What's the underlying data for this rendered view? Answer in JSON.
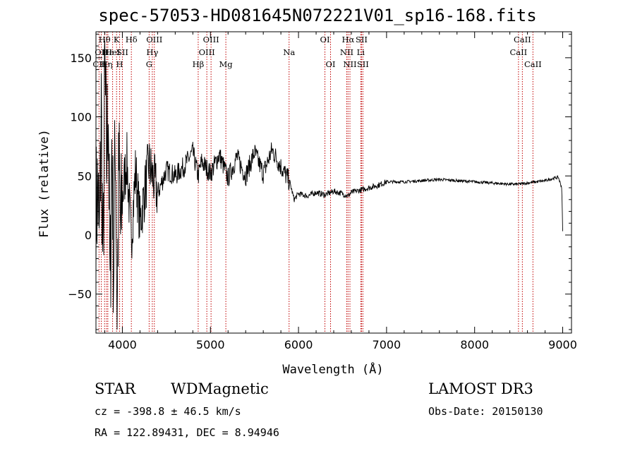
{
  "chart_data": {
    "type": "line",
    "title": "spec-57053-HD081645N072221V01_sp16-168.fits",
    "xlabel": "Wavelength (Å)",
    "ylabel": "Flux (relative)",
    "xlim": [
      3700,
      9100
    ],
    "ylim": [
      -83,
      172
    ],
    "xticks": [
      4000,
      5000,
      6000,
      7000,
      8000,
      9000
    ],
    "yticks": [
      -50,
      0,
      50,
      100,
      150
    ],
    "series": [
      {
        "name": "spectrum",
        "x": [
          3700,
          3720,
          3740,
          3760,
          3780,
          3800,
          3820,
          3840,
          3860,
          3880,
          3900,
          3920,
          3940,
          3960,
          3980,
          4000,
          4050,
          4100,
          4150,
          4200,
          4300,
          4400,
          4500,
          4600,
          4700,
          4800,
          4860,
          4900,
          5000,
          5100,
          5200,
          5300,
          5400,
          5500,
          5600,
          5700,
          5800,
          5900,
          5950,
          6000,
          6100,
          6200,
          6300,
          6400,
          6500,
          6560,
          6600,
          6700,
          6800,
          6900,
          7000,
          7200,
          7400,
          7600,
          7800,
          8000,
          8200,
          8400,
          8500,
          8600,
          8700,
          8800,
          8900,
          8950,
          8990,
          9000
        ],
        "y": [
          15,
          40,
          -10,
          110,
          -40,
          140,
          60,
          120,
          -60,
          80,
          -30,
          90,
          -70,
          60,
          0,
          30,
          65,
          -5,
          55,
          10,
          60,
          35,
          55,
          50,
          58,
          70,
          50,
          62,
          52,
          68,
          48,
          66,
          50,
          70,
          52,
          72,
          58,
          45,
          30,
          35,
          33,
          36,
          34,
          37,
          35,
          33,
          36,
          38,
          40,
          42,
          45,
          45,
          46,
          47,
          46,
          45,
          44,
          43,
          43,
          44,
          45,
          46,
          48,
          49,
          40,
          3
        ]
      }
    ],
    "lines": [
      {
        "x": 3735,
        "label": "CII",
        "row": 3
      },
      {
        "x": 3760,
        "label": "OII",
        "row": 2
      },
      {
        "x": 3798,
        "label": "Hθ",
        "row": 1
      },
      {
        "x": 3820,
        "label": "Hη",
        "row": 3
      },
      {
        "x": 3835,
        "label": "Hε",
        "row": 2
      },
      {
        "x": 3889,
        "label": "HeI",
        "row": 2
      },
      {
        "x": 3934,
        "label": "K",
        "row": 1
      },
      {
        "x": 3969,
        "label": "H",
        "row": 3
      },
      {
        "x": 4000,
        "label": "SII",
        "row": 2
      },
      {
        "x": 4102,
        "label": "Hδ",
        "row": 1
      },
      {
        "x": 4304,
        "label": "G",
        "row": 3
      },
      {
        "x": 4340,
        "label": "Hγ",
        "row": 2
      },
      {
        "x": 4363,
        "label": "OIII",
        "row": 1
      },
      {
        "x": 4861,
        "label": "Hβ",
        "row": 3
      },
      {
        "x": 4959,
        "label": "OIII",
        "row": 2
      },
      {
        "x": 5007,
        "label": "OIII",
        "row": 1
      },
      {
        "x": 5175,
        "label": "Mg",
        "row": 3
      },
      {
        "x": 5893,
        "label": "Na",
        "row": 2
      },
      {
        "x": 6300,
        "label": "OI",
        "row": 1
      },
      {
        "x": 6364,
        "label": "OI",
        "row": 3
      },
      {
        "x": 6548,
        "label": "NII",
        "row": 2
      },
      {
        "x": 6563,
        "label": "Hα",
        "row": 1
      },
      {
        "x": 6584,
        "label": "NII",
        "row": 3
      },
      {
        "x": 6707,
        "label": "Li",
        "row": 2
      },
      {
        "x": 6716,
        "label": "SII",
        "row": 1
      },
      {
        "x": 6731,
        "label": "SII",
        "row": 3
      },
      {
        "x": 8498,
        "label": "CaII",
        "row": 2
      },
      {
        "x": 8542,
        "label": "CaII",
        "row": 1
      },
      {
        "x": 8662,
        "label": "CaII",
        "row": 3
      }
    ]
  },
  "info": {
    "class": "STAR",
    "subclass": "WDMagnetic",
    "survey": "LAMOST DR3",
    "cz": "cz = -398.8 ± 46.5 km/s",
    "obs_date": "Obs-Date: 20150130",
    "radec": "RA = 122.89431, DEC =   8.94946"
  }
}
